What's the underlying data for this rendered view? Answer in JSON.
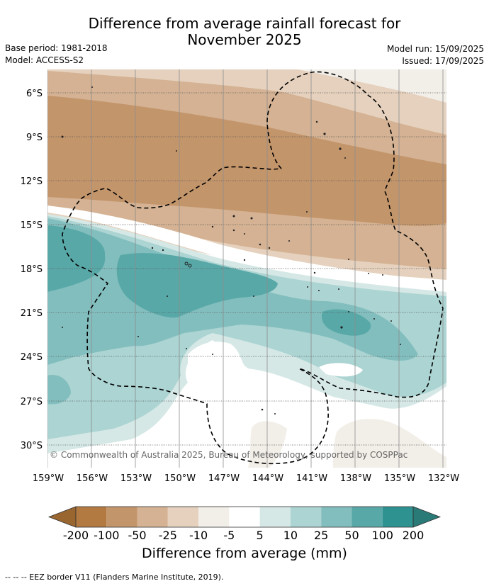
{
  "title_line1": "Difference from average rainfall forecast for",
  "title_line2": "November 2025",
  "meta_left": [
    "Base period: 1981-2018",
    "Model: ACCESS-S2"
  ],
  "meta_right": [
    "Model run: 15/09/2025",
    "Issued: 17/09/2025"
  ],
  "copyright": "© Commonwealth of Australia 2025, Bureau of Meteorology, supported by COSPPac",
  "lat_labels": [
    "6°S",
    "9°S",
    "12°S",
    "15°S",
    "18°S",
    "21°S",
    "24°S",
    "27°S",
    "30°S"
  ],
  "lon_labels": [
    "159°W",
    "156°W",
    "153°W",
    "150°W",
    "147°W",
    "144°W",
    "141°W",
    "138°W",
    "135°W",
    "132°W"
  ],
  "colorbar": {
    "labels": [
      "-200",
      "-100",
      "-50",
      "-25",
      "-10",
      "-5",
      "5",
      "10",
      "25",
      "50",
      "100",
      "200"
    ],
    "colors": [
      "#9a6630",
      "#b27941",
      "#c3956b",
      "#d4b293",
      "#e5d1bd",
      "#f2eee8",
      "#ffffff",
      "#d5e8e6",
      "#abd4d2",
      "#83bebe",
      "#59a8a8",
      "#2e9390",
      "#2a7a78"
    ],
    "title": "Difference from average (mm)"
  },
  "footnote": "--  --  -- EEZ border V11 (Flanders Marine Institute, 2019)."
}
